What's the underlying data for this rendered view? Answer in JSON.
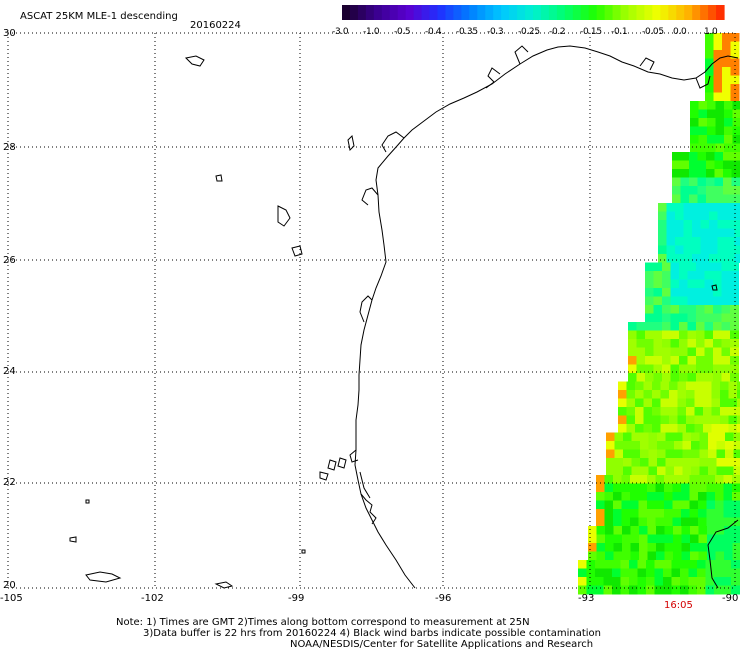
{
  "header": {
    "title": "ASCAT 25KM MLE-1 descending",
    "date": "20160224"
  },
  "colorbar": {
    "labels": [
      "-3.0",
      "-1.0",
      "-0.5",
      "-0.4",
      "-0.35",
      "-0.3",
      "-0.25",
      "-0.2",
      "-0.15",
      "-0.1",
      "-0.05",
      "0.0",
      "1.0"
    ],
    "colors": [
      "#1b0030",
      "#3a0090",
      "#5a00d0",
      "#2030ff",
      "#0080ff",
      "#00c8ff",
      "#00f0d0",
      "#00ff70",
      "#20ff00",
      "#a0ff00",
      "#f0ff00",
      "#ffb000",
      "#ff3000"
    ]
  },
  "axes": {
    "y_ticks": [
      "30",
      "28",
      "26",
      "24",
      "22",
      "20"
    ],
    "x_ticks": [
      "-105",
      "-102",
      "-99",
      "-96",
      "-93",
      "-90"
    ]
  },
  "pass_time": "16:05",
  "notes": {
    "line1": "Note: 1) Times are GMT 2)Times along bottom correspond to measurement at 25N",
    "line2": "3)Data buffer is 22 hrs from 20160224 4) Black wind barbs indicate possible contamination",
    "credit": "NOAA/NESDIS/Center for Satellite Applications and Research"
  }
}
